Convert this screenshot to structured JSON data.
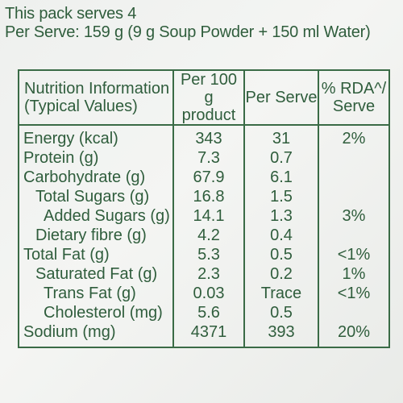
{
  "intro": {
    "serves": "This pack serves 4",
    "per_serve": "Per Serve: 159 g (9 g Soup Powder + 150 ml Water)"
  },
  "table": {
    "headers": {
      "nutrient": [
        "Nutrition Information",
        "(Typical Values)"
      ],
      "per100": [
        "Per 100 g",
        "product"
      ],
      "perserve": [
        "Per Serve"
      ],
      "rda": [
        "% RDA^/",
        "Serve"
      ]
    },
    "rows": [
      {
        "label": "Energy (kcal)",
        "per100": "343",
        "perserve": "31",
        "rda": "2%"
      },
      {
        "label": "Protein (g)",
        "per100": "7.3",
        "perserve": "0.7",
        "rda": ""
      },
      {
        "label": "Carbohydrate (g)",
        "per100": "67.9",
        "perserve": "6.1",
        "rda": ""
      },
      {
        "label": "Total Sugars (g)",
        "per100": "16.8",
        "perserve": "1.5",
        "rda": ""
      },
      {
        "label": "Added Sugars (g)",
        "per100": "14.1",
        "perserve": "1.3",
        "rda": "3%"
      },
      {
        "label": "Dietary fibre (g)",
        "per100": "4.2",
        "perserve": "0.4",
        "rda": ""
      },
      {
        "label": "Total Fat (g)",
        "per100": "5.3",
        "perserve": "0.5",
        "rda": "<1%"
      },
      {
        "label": "Saturated Fat (g)",
        "per100": "2.3",
        "perserve": "0.2",
        "rda": "1%"
      },
      {
        "label": "Trans Fat (g)",
        "per100": "0.03",
        "perserve": "Trace",
        "rda": "<1%"
      },
      {
        "label": "Cholesterol (mg)",
        "per100": "5.6",
        "perserve": "0.5",
        "rda": ""
      },
      {
        "label": "Sodium (mg)",
        "per100": "4371",
        "perserve": "393",
        "rda": "20%"
      }
    ]
  }
}
